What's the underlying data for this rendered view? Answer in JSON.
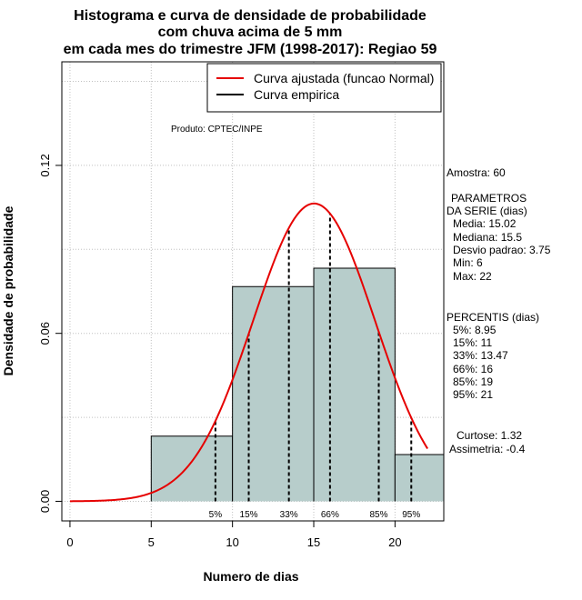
{
  "title": {
    "line1": "Histograma e curva de densidade de probabilidade",
    "line2": "com chuva acima de 5 mm",
    "line3": "em cada mes do trimestre JFM (1998-2017): Regiao 59"
  },
  "chart_data": {
    "type": "bar",
    "xlabel": "Numero de dias",
    "ylabel": "Densidade de probabilidade",
    "xlim": [
      -0.5,
      23
    ],
    "ylim": [
      -0.007,
      0.157
    ],
    "xticks": [
      0,
      5,
      10,
      15,
      20
    ],
    "yticks": [
      0.0,
      0.06,
      0.12
    ],
    "ytick_labels": [
      "0.00",
      "0.06",
      "0.12"
    ],
    "bins": [
      {
        "x0": 5,
        "x1": 10,
        "density": 0.0233
      },
      {
        "x0": 10,
        "x1": 15,
        "density": 0.0767
      },
      {
        "x0": 15,
        "x1": 20,
        "density": 0.0833
      },
      {
        "x0": 20,
        "x1": 25,
        "density": 0.0167
      }
    ],
    "normal_curve": {
      "mean": 15.02,
      "sd": 3.75,
      "x_range": [
        0,
        22
      ]
    },
    "percentile_lines": [
      {
        "label": "5%",
        "x": 8.95
      },
      {
        "label": "15%",
        "x": 11
      },
      {
        "label": "33%",
        "x": 13.47
      },
      {
        "label": "66%",
        "x": 16
      },
      {
        "label": "85%",
        "x": 19
      },
      {
        "label": "95%",
        "x": 21
      }
    ],
    "colors": {
      "bar_fill": "#b7cdcb",
      "curve": "#e60000",
      "grid": "#c0c0c0"
    }
  },
  "legend": {
    "items": [
      {
        "label": "Curva ajustada (funcao Normal)",
        "color": "#e60000"
      },
      {
        "label": "Curva empirica",
        "color": "#000000"
      }
    ]
  },
  "product_label": "Produto: CPTEC/INPE",
  "stats": {
    "sample": "Amostra: 60",
    "params_title1": "PARAMETROS",
    "params_title2": "DA SERIE (dias)",
    "params": [
      "Media: 15.02",
      "Mediana: 15.5",
      "Desvio padrao: 3.75",
      "Min: 6",
      "Max: 22"
    ],
    "perc_title": "PERCENTIS (dias)",
    "percentiles": [
      "5%: 8.95",
      "15%: 11",
      "33%: 13.47",
      "66%: 16",
      "85%: 19",
      "95%: 21"
    ],
    "kurtosis": "Curtose: 1.32",
    "skewness": "Assimetria: -0.4"
  }
}
